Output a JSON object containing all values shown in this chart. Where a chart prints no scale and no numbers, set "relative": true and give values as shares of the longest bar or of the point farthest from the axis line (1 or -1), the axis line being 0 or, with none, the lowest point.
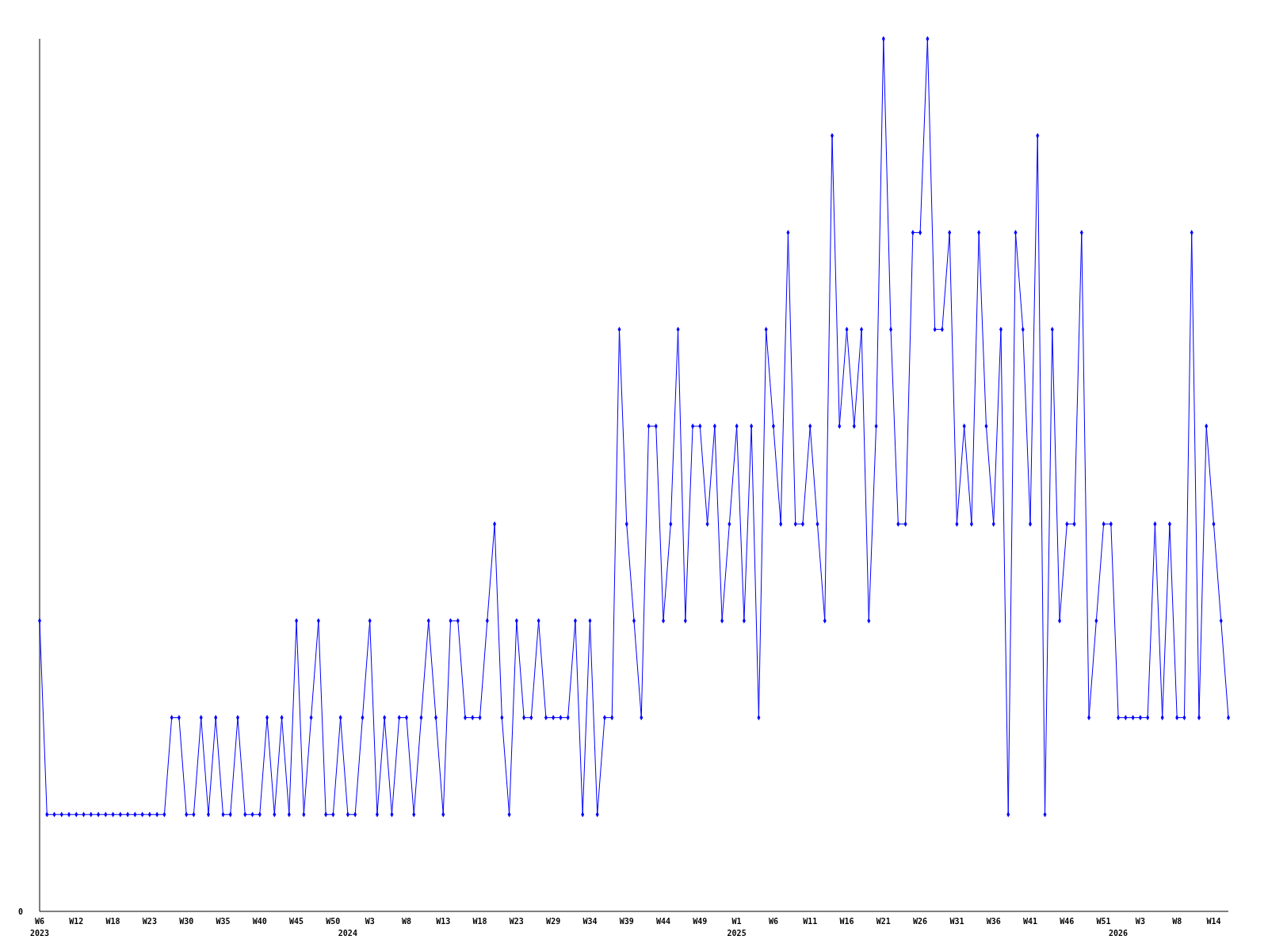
{
  "chart_data": {
    "type": "line",
    "relative": true,
    "annotations": [
      "0"
    ],
    "marker": "diamond",
    "line_style": "solid",
    "categories": [
      "W6\n2023",
      null,
      null,
      null,
      null,
      "W12",
      null,
      null,
      null,
      null,
      "W18",
      null,
      null,
      null,
      null,
      "W23",
      null,
      null,
      null,
      null,
      "W30",
      null,
      null,
      null,
      null,
      "W35",
      null,
      null,
      null,
      null,
      "W40",
      null,
      null,
      null,
      null,
      "W45",
      null,
      null,
      null,
      null,
      "W50",
      null,
      "\n2024",
      null,
      null,
      "W3",
      null,
      null,
      null,
      null,
      "W8",
      null,
      null,
      null,
      null,
      "W13",
      null,
      null,
      null,
      null,
      "W18",
      null,
      null,
      null,
      null,
      "W23",
      null,
      null,
      null,
      null,
      "W29",
      null,
      null,
      null,
      null,
      "W34",
      null,
      null,
      null,
      null,
      "W39",
      null,
      null,
      null,
      null,
      "W44",
      null,
      null,
      null,
      null,
      "W49",
      null,
      null,
      null,
      null,
      "W1\n2025",
      null,
      null,
      null,
      null,
      "W6",
      null,
      null,
      null,
      null,
      "W11",
      null,
      null,
      null,
      null,
      "W16",
      null,
      null,
      null,
      null,
      "W21",
      null,
      null,
      null,
      null,
      "W26",
      null,
      null,
      null,
      null,
      "W31",
      null,
      null,
      null,
      null,
      "W36",
      null,
      null,
      null,
      null,
      "W41",
      null,
      null,
      null,
      null,
      "W46",
      null,
      null,
      null,
      null,
      "W51",
      null,
      "\n2026",
      null,
      null,
      "W3",
      null,
      null,
      null,
      null,
      "W8",
      null,
      null,
      null,
      null,
      "W14",
      null,
      null
    ],
    "series": [
      {
        "color": "#0000ff",
        "values": [
          0.333,
          0.111,
          0.111,
          0.111,
          0.111,
          0.111,
          0.111,
          0.111,
          0.111,
          0.111,
          0.111,
          0.111,
          0.111,
          0.111,
          0.111,
          0.111,
          0.111,
          0.111,
          0.222,
          0.222,
          0.111,
          0.111,
          0.222,
          0.111,
          0.222,
          0.111,
          0.111,
          0.222,
          0.111,
          0.111,
          0.111,
          0.222,
          0.111,
          0.222,
          0.111,
          0.333,
          0.111,
          0.222,
          0.333,
          0.111,
          0.111,
          0.222,
          0.111,
          0.111,
          0.222,
          0.333,
          0.111,
          0.222,
          0.111,
          0.222,
          0.222,
          0.111,
          0.222,
          0.333,
          0.222,
          0.111,
          0.333,
          0.333,
          0.222,
          0.222,
          0.222,
          0.333,
          0.444,
          0.222,
          0.111,
          0.333,
          0.222,
          0.222,
          0.333,
          0.222,
          0.222,
          0.222,
          0.222,
          0.333,
          0.111,
          0.333,
          0.111,
          0.222,
          0.222,
          0.667,
          0.444,
          0.333,
          0.222,
          0.556,
          0.556,
          0.333,
          0.444,
          0.667,
          0.333,
          0.556,
          0.556,
          0.444,
          0.556,
          0.333,
          0.444,
          0.556,
          0.333,
          0.556,
          0.222,
          0.667,
          0.556,
          0.444,
          0.778,
          0.444,
          0.444,
          0.556,
          0.444,
          0.333,
          0.889,
          0.556,
          0.667,
          0.556,
          0.667,
          0.333,
          0.556,
          1,
          0.667,
          0.444,
          0.444,
          0.778,
          0.778,
          1,
          0.667,
          0.667,
          0.778,
          0.444,
          0.556,
          0.444,
          0.778,
          0.556,
          0.444,
          0.667,
          0.111,
          0.778,
          0.667,
          0.444,
          0.889,
          0.111,
          0.667,
          0.333,
          0.444,
          0.444,
          0.778,
          0.222,
          0.333,
          0.444,
          0.444,
          0.222,
          0.222,
          0.222,
          0.222,
          0.222,
          0.444,
          0.222,
          0.444,
          0.222,
          0.222,
          0.778,
          0.222,
          0.556,
          0.444,
          0.333,
          0.222
        ]
      }
    ]
  }
}
